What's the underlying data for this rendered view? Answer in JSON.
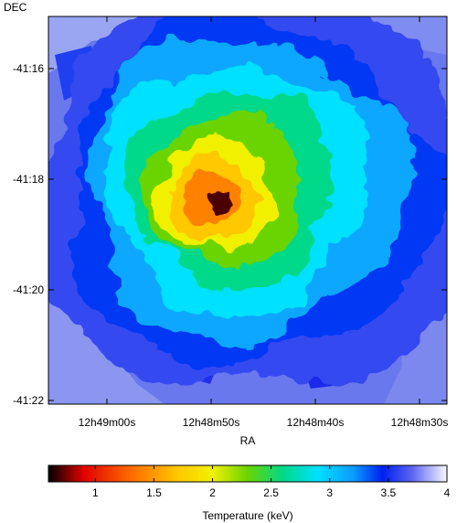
{
  "chart_data": {
    "type": "heatmap",
    "title": "",
    "xlabel": "RA",
    "ylabel": "DEC",
    "x_ticks": [
      "12h49m00s",
      "12h48m50s",
      "12h48m40s",
      "12h48m30s"
    ],
    "y_ticks": [
      "-41:16",
      "-41:18",
      "-41:20",
      "-41:22"
    ],
    "colorbar": {
      "label": "Temperature (keV)",
      "range": [
        0.6,
        4.0
      ],
      "ticks": [
        "1",
        "1.5",
        "2",
        "2.5",
        "3",
        "3.5",
        "4"
      ],
      "tick_values": [
        1,
        1.5,
        2,
        2.5,
        3,
        3.5,
        4
      ],
      "colormap": [
        {
          "v": 0.6,
          "color": "#000000"
        },
        {
          "v": 0.9,
          "color": "#e00000"
        },
        {
          "v": 1.3,
          "color": "#ff6a00"
        },
        {
          "v": 1.7,
          "color": "#ffc800"
        },
        {
          "v": 2.0,
          "color": "#f0f000"
        },
        {
          "v": 2.3,
          "color": "#6ad400"
        },
        {
          "v": 2.6,
          "color": "#00d98a"
        },
        {
          "v": 2.9,
          "color": "#00e0ff"
        },
        {
          "v": 3.2,
          "color": "#0c9cff"
        },
        {
          "v": 3.45,
          "color": "#0020f0"
        },
        {
          "v": 3.7,
          "color": "#5a64f0"
        },
        {
          "v": 4.0,
          "color": "#f8f8ff"
        }
      ]
    },
    "temperature_map": {
      "description_values": "radial temperature structure: cool core ~0.7 keV, rising outward to ~3.5-4 keV",
      "levels": [
        {
          "temperature_keV": 3.6,
          "center_ra_frac": 0.52,
          "center_dec_frac": 0.44,
          "radius": 0.56
        },
        {
          "temperature_keV": 3.4,
          "center_ra_frac": 0.5,
          "center_dec_frac": 0.45,
          "radius": 0.46
        },
        {
          "temperature_keV": 3.15,
          "center_ra_frac": 0.49,
          "center_dec_frac": 0.44,
          "radius": 0.4
        },
        {
          "temperature_keV": 2.9,
          "center_ra_frac": 0.47,
          "center_dec_frac": 0.44,
          "radius": 0.33
        },
        {
          "temperature_keV": 2.6,
          "center_ra_frac": 0.46,
          "center_dec_frac": 0.44,
          "radius": 0.26
        },
        {
          "temperature_keV": 2.3,
          "center_ra_frac": 0.44,
          "center_dec_frac": 0.45,
          "radius": 0.2
        },
        {
          "temperature_keV": 2.0,
          "center_ra_frac": 0.42,
          "center_dec_frac": 0.46,
          "radius": 0.15
        },
        {
          "temperature_keV": 1.7,
          "center_ra_frac": 0.41,
          "center_dec_frac": 0.47,
          "radius": 0.11
        },
        {
          "temperature_keV": 1.4,
          "center_ra_frac": 0.41,
          "center_dec_frac": 0.47,
          "radius": 0.07
        },
        {
          "temperature_keV": 0.7,
          "center_ra_frac": 0.43,
          "center_dec_frac": 0.48,
          "radius": 0.025
        }
      ]
    }
  }
}
